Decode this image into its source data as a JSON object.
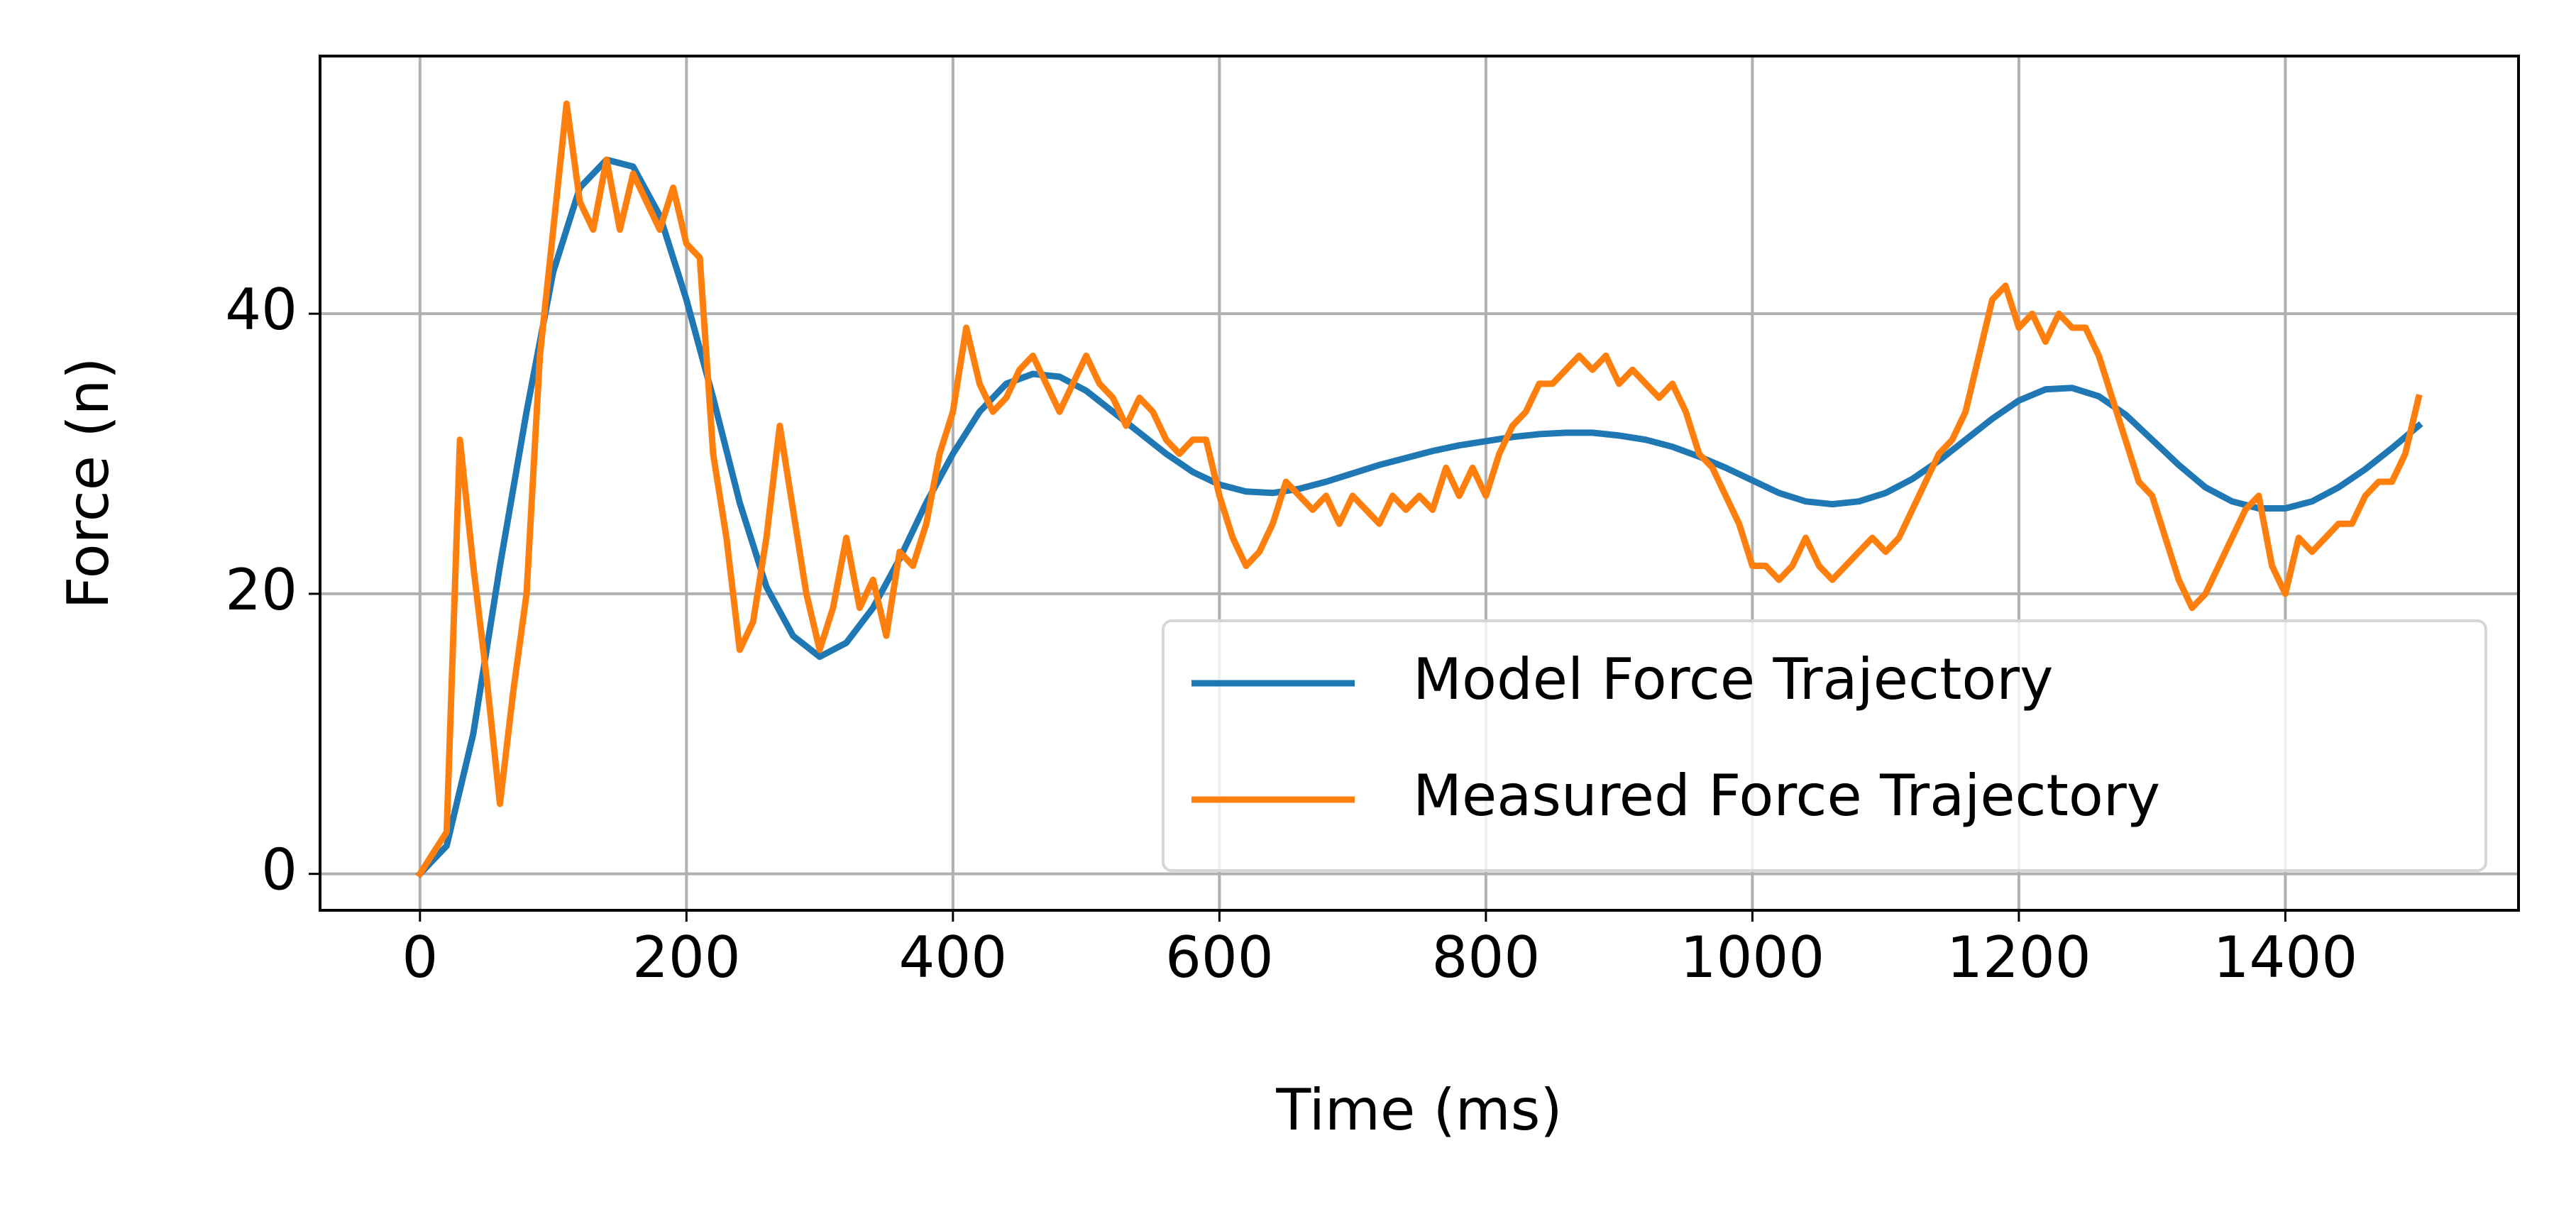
{
  "chart_data": {
    "type": "line",
    "xlabel": "Time (ms)",
    "ylabel": "Force (n)",
    "xlim": [
      -75,
      1575
    ],
    "ylim": [
      -2.6,
      58.4
    ],
    "xticks": [
      0,
      200,
      400,
      600,
      800,
      1000,
      1200,
      1400
    ],
    "yticks": [
      0,
      20,
      40
    ],
    "grid": true,
    "legend": "lower right",
    "series": [
      {
        "name": "Model Force Trajectory",
        "color": "#1f77b4",
        "x": [
          0,
          20,
          40,
          60,
          80,
          100,
          120,
          140,
          160,
          180,
          200,
          220,
          240,
          260,
          280,
          300,
          320,
          340,
          360,
          380,
          400,
          420,
          440,
          460,
          480,
          500,
          520,
          540,
          560,
          580,
          600,
          620,
          640,
          660,
          680,
          700,
          720,
          740,
          760,
          780,
          800,
          820,
          840,
          860,
          880,
          900,
          920,
          940,
          960,
          980,
          1000,
          1020,
          1040,
          1060,
          1080,
          1100,
          1120,
          1140,
          1160,
          1180,
          1200,
          1220,
          1240,
          1260,
          1280,
          1300,
          1320,
          1340,
          1360,
          1380,
          1400,
          1420,
          1440,
          1460,
          1480,
          1500
        ],
        "values": [
          0,
          2,
          10,
          22,
          33,
          43,
          49,
          51,
          50.5,
          47,
          41,
          34,
          26.5,
          20.5,
          17,
          15.5,
          16.5,
          19,
          22.5,
          26.5,
          30,
          33,
          35,
          35.7,
          35.5,
          34.5,
          33,
          31.5,
          30,
          28.7,
          27.8,
          27.3,
          27.2,
          27.5,
          28,
          28.6,
          29.2,
          29.7,
          30.2,
          30.6,
          30.9,
          31.2,
          31.4,
          31.5,
          31.5,
          31.3,
          31,
          30.5,
          29.8,
          29,
          28.1,
          27.2,
          26.6,
          26.4,
          26.6,
          27.2,
          28.2,
          29.5,
          31,
          32.5,
          33.8,
          34.6,
          34.7,
          34.1,
          32.8,
          31,
          29.2,
          27.6,
          26.6,
          26.1,
          26.1,
          26.6,
          27.6,
          28.9,
          30.4,
          32
        ]
      },
      {
        "name": "Measured Force Trajectory",
        "color": "#ff7f0e",
        "x": [
          0,
          10,
          20,
          30,
          40,
          50,
          60,
          70,
          80,
          90,
          100,
          110,
          120,
          130,
          140,
          150,
          160,
          170,
          180,
          190,
          200,
          210,
          220,
          230,
          240,
          250,
          260,
          270,
          280,
          290,
          300,
          310,
          320,
          330,
          340,
          350,
          360,
          370,
          380,
          390,
          400,
          410,
          420,
          430,
          440,
          450,
          460,
          470,
          480,
          490,
          500,
          510,
          520,
          530,
          540,
          550,
          560,
          570,
          580,
          590,
          600,
          610,
          620,
          630,
          640,
          650,
          660,
          670,
          680,
          690,
          700,
          710,
          720,
          730,
          740,
          750,
          760,
          770,
          780,
          790,
          800,
          810,
          820,
          830,
          840,
          850,
          860,
          870,
          880,
          890,
          900,
          910,
          920,
          930,
          940,
          950,
          960,
          970,
          980,
          990,
          1000,
          1010,
          1020,
          1030,
          1040,
          1050,
          1060,
          1070,
          1080,
          1090,
          1100,
          1110,
          1120,
          1130,
          1140,
          1150,
          1160,
          1170,
          1180,
          1190,
          1200,
          1210,
          1220,
          1230,
          1240,
          1250,
          1260,
          1270,
          1280,
          1290,
          1300,
          1310,
          1320,
          1330,
          1340,
          1350,
          1360,
          1370,
          1380,
          1390,
          1400,
          1410,
          1420,
          1430,
          1440,
          1450,
          1460,
          1470,
          1480,
          1490,
          1500
        ],
        "values": [
          0,
          1.5,
          3,
          31,
          22,
          14,
          5,
          13,
          20,
          37,
          46,
          55,
          48,
          46,
          51,
          46,
          50,
          48,
          46,
          49,
          45,
          44,
          30,
          24,
          16,
          18,
          24,
          32,
          26,
          20,
          16,
          19,
          24,
          19,
          21,
          17,
          23,
          22,
          25,
          30,
          33,
          39,
          35,
          33,
          34,
          36,
          37,
          35,
          33,
          35,
          37,
          35,
          34,
          32,
          34,
          33,
          31,
          30,
          31,
          31,
          27,
          24,
          22,
          23,
          25,
          28,
          27,
          26,
          27,
          25,
          27,
          26,
          25,
          27,
          26,
          27,
          26,
          29,
          27,
          29,
          27,
          30,
          32,
          33,
          35,
          35,
          36,
          37,
          36,
          37,
          35,
          36,
          35,
          34,
          35,
          33,
          30,
          29,
          27,
          25,
          22,
          22,
          21,
          22,
          24,
          22,
          21,
          22,
          23,
          24,
          23,
          24,
          26,
          28,
          30,
          31,
          33,
          37,
          41,
          42,
          39,
          40,
          38,
          40,
          39,
          39,
          37,
          34,
          31,
          28,
          27,
          24,
          21,
          19,
          20,
          22,
          24,
          26,
          27,
          22,
          20,
          24,
          23,
          24,
          25,
          25,
          27,
          28,
          28,
          30,
          34
        ]
      }
    ]
  }
}
